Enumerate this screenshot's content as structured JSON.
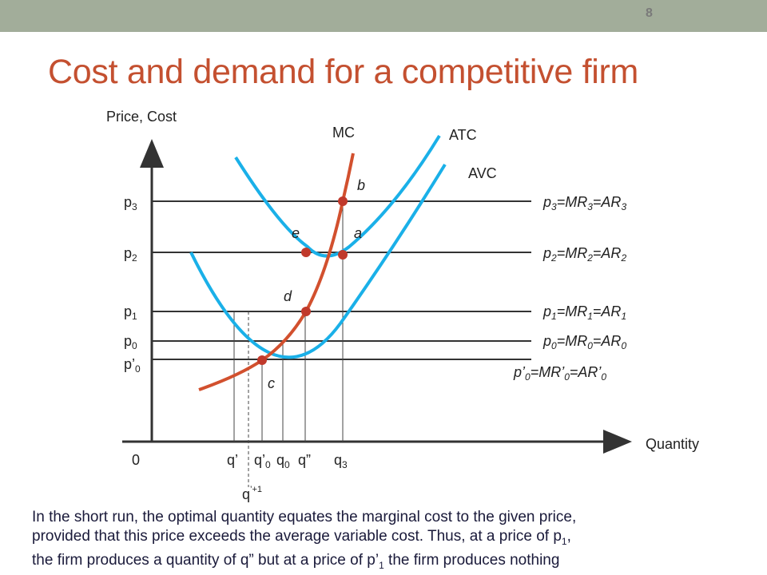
{
  "slide": {
    "page_number": "8",
    "title": "Cost and demand for a competitive firm",
    "caption_lines": [
      "In the short run, the optimal quantity equates the marginal cost to the given price,",
      "provided that this price exceeds the average variable cost. Thus, at a price of p",
      "the firm produces a quantity of q” but at a price of p’",
      " the firm produces nothing"
    ],
    "caption_subs": [
      "1",
      "1"
    ],
    "caption_mid": ","
  },
  "diagram": {
    "axes": {
      "y_label": "Price, Cost",
      "x_label": "Quantity",
      "origin": "0"
    },
    "curves": {
      "mc": "MC",
      "atc": "ATC",
      "avc": "AVC"
    },
    "price_levels": {
      "p3": {
        "base": "p",
        "sub": "3"
      },
      "p2": {
        "base": "p",
        "sub": "2"
      },
      "p1": {
        "base": "p",
        "sub": "1"
      },
      "p0": {
        "base": "p",
        "sub": "0"
      },
      "pp0": {
        "base": "p’",
        "sub": "0"
      }
    },
    "right_labels": {
      "r3": {
        "t1": "p",
        "s1": "3",
        "t2": "=MR",
        "s2": "3",
        "t3": "=AR",
        "s3": "3"
      },
      "r2": {
        "t1": "p",
        "s1": "2",
        "t2": "=MR",
        "s2": "2",
        "t3": "=AR",
        "s3": "2"
      },
      "r1": {
        "t1": "p",
        "s1": "1",
        "t2": "=MR",
        "s2": "1",
        "t3": "=AR",
        "s3": "1"
      },
      "r0": {
        "t1": "p",
        "s1": "0",
        "t2": "=MR",
        "s2": "0",
        "t3": "=AR",
        "s3": "0"
      },
      "rp0": {
        "t1": "p’",
        "s1": "0",
        "t2": "=MR’",
        "s2": "0",
        "t3": "=AR’",
        "s3": "0"
      }
    },
    "quantity_labels": {
      "q_prime": "q’",
      "q_prime0": {
        "base": "q’",
        "sub": "0"
      },
      "q0": {
        "base": "q",
        "sub": "0"
      },
      "q_dprime": "q”",
      "q3": {
        "base": "q",
        "sub": "3"
      },
      "q_plus1": {
        "base": "q",
        "sup": "’+1"
      }
    },
    "points": {
      "a": "a",
      "b": "b",
      "c": "c",
      "d": "d",
      "e": "e"
    },
    "colors": {
      "mc": "#d2502e",
      "cost_curves": "#1ab0e8",
      "points": "#c0392b",
      "lines": "#333333"
    }
  }
}
